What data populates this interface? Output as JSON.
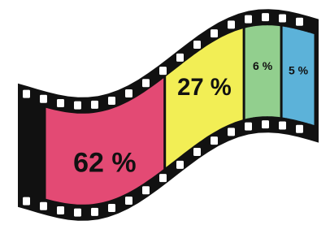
{
  "chart_data": {
    "type": "filmstrip",
    "values": [
      62,
      27,
      6,
      5
    ],
    "value_labels": [
      "62 %",
      "27 %",
      "6 %",
      "5 %"
    ],
    "colors": [
      "#e34a74",
      "#f2ee55",
      "#92cf8e",
      "#5cb2d9"
    ]
  }
}
